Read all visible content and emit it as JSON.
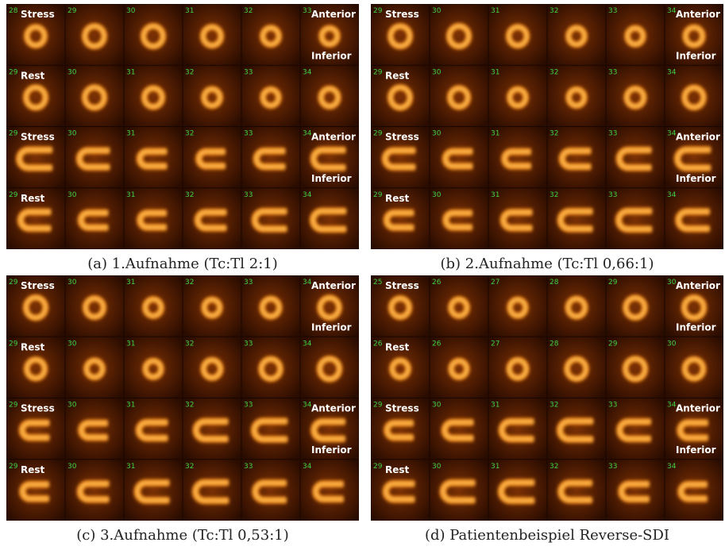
{
  "panels": [
    {
      "caption": "(a) 1.Aufnahme (Tc:Tl 2:1)",
      "rows": [
        {
          "label": "Stress",
          "slices": [
            28,
            29,
            30,
            31,
            32,
            33
          ],
          "orientation": [
            "Anterior",
            "Inferior"
          ]
        },
        {
          "label": "Rest",
          "slices": [
            29,
            30,
            31,
            32,
            33,
            34
          ]
        },
        {
          "label": "Stress",
          "slices": [
            29,
            30,
            31,
            32,
            33,
            34
          ],
          "orientation": [
            "Anterior",
            "Inferior"
          ]
        },
        {
          "label": "Rest",
          "slices": [
            29,
            30,
            31,
            32,
            33,
            34
          ]
        }
      ]
    },
    {
      "caption": "(b) 2.Aufnahme (Tc:Tl 0,66:1)",
      "rows": [
        {
          "label": "Stress",
          "slices": [
            29,
            30,
            31,
            32,
            33,
            34
          ],
          "orientation": [
            "Anterior",
            "Inferior"
          ]
        },
        {
          "label": "Rest",
          "slices": [
            29,
            30,
            31,
            32,
            33,
            34
          ]
        },
        {
          "label": "Stress",
          "slices": [
            29,
            30,
            31,
            32,
            33,
            34
          ],
          "orientation": [
            "Anterior",
            "Inferior"
          ]
        },
        {
          "label": "Rest",
          "slices": [
            29,
            30,
            31,
            32,
            33,
            34
          ]
        }
      ]
    },
    {
      "caption": "(c) 3.Aufnahme (Tc:Tl 0,53:1)",
      "rows": [
        {
          "label": "Stress",
          "slices": [
            29,
            30,
            31,
            32,
            33,
            34
          ],
          "orientation": [
            "Anterior",
            "Inferior"
          ]
        },
        {
          "label": "Rest",
          "slices": [
            29,
            30,
            31,
            32,
            33,
            34
          ]
        },
        {
          "label": "Stress",
          "slices": [
            29,
            30,
            31,
            32,
            33,
            34
          ],
          "orientation": [
            "Anterior",
            "Inferior"
          ]
        },
        {
          "label": "Rest",
          "slices": [
            29,
            30,
            31,
            32,
            33,
            34
          ]
        }
      ]
    },
    {
      "caption": "(d) Patientenbeispiel Reverse-SDI",
      "rows": [
        {
          "label": "Stress",
          "slices": [
            25,
            26,
            27,
            28,
            29,
            30
          ],
          "orientation": [
            "Anterior",
            "Inferior"
          ]
        },
        {
          "label": "Rest",
          "slices": [
            26,
            26,
            27,
            28,
            29,
            30
          ]
        },
        {
          "label": "Stress",
          "slices": [
            29,
            30,
            31,
            32,
            33,
            34
          ],
          "orientation": [
            "Anterior",
            "Inferior"
          ]
        },
        {
          "label": "Rest",
          "slices": [
            29,
            30,
            31,
            32,
            33,
            34
          ]
        }
      ]
    }
  ]
}
